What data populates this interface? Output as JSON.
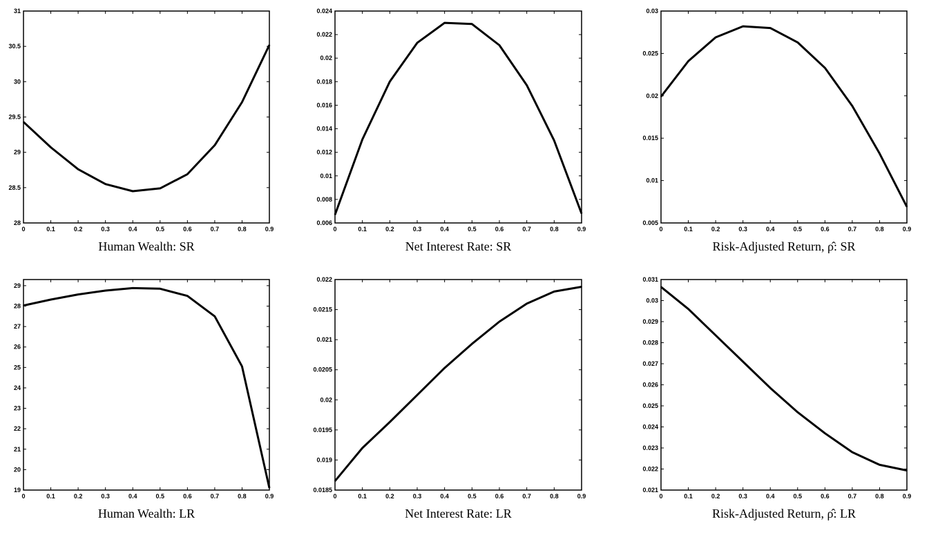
{
  "chart_data": [
    {
      "type": "line",
      "title": "",
      "caption": "Human Wealth: SR",
      "xlabel": "",
      "ylabel": "",
      "xlim": [
        0,
        0.9
      ],
      "ylim": [
        28,
        31
      ],
      "xticks": [
        "0",
        "0.1",
        "0.2",
        "0.3",
        "0.4",
        "0.5",
        "0.6",
        "0.7",
        "0.8",
        "0.9"
      ],
      "yticks": [
        "28",
        "28.5",
        "29",
        "29.5",
        "30",
        "30.5",
        "31"
      ],
      "grid": false,
      "x": [
        0,
        0.1,
        0.2,
        0.3,
        0.4,
        0.5,
        0.6,
        0.7,
        0.8,
        0.9
      ],
      "series": [
        {
          "values": [
            29.43,
            29.07,
            28.76,
            28.55,
            28.45,
            28.49,
            28.69,
            29.1,
            29.71,
            30.52
          ]
        }
      ]
    },
    {
      "type": "line",
      "title": "",
      "caption": "Net Interest Rate: SR",
      "xlabel": "",
      "ylabel": "",
      "xlim": [
        0,
        0.9
      ],
      "ylim": [
        0.006,
        0.024
      ],
      "xticks": [
        "0",
        "0.1",
        "0.2",
        "0.3",
        "0.4",
        "0.5",
        "0.6",
        "0.7",
        "0.8",
        "0.9"
      ],
      "yticks": [
        "0.006",
        "0.008",
        "0.01",
        "0.012",
        "0.014",
        "0.016",
        "0.018",
        "0.02",
        "0.022",
        "0.024"
      ],
      "grid": false,
      "x": [
        0,
        0.1,
        0.2,
        0.3,
        0.4,
        0.5,
        0.6,
        0.7,
        0.8,
        0.9
      ],
      "series": [
        {
          "values": [
            0.0067,
            0.0131,
            0.018,
            0.0213,
            0.023,
            0.0229,
            0.0211,
            0.0177,
            0.013,
            0.0068
          ]
        }
      ]
    },
    {
      "type": "line",
      "title": "",
      "caption": "Risk-Adjusted Return, ρ̂: SR",
      "xlabel": "",
      "ylabel": "",
      "xlim": [
        0,
        0.9
      ],
      "ylim": [
        0.005,
        0.03
      ],
      "xticks": [
        "0",
        "0.1",
        "0.2",
        "0.3",
        "0.4",
        "0.5",
        "0.6",
        "0.7",
        "0.8",
        "0.9"
      ],
      "yticks": [
        "0.005",
        "0.01",
        "0.015",
        "0.02",
        "0.025",
        "0.03"
      ],
      "grid": false,
      "x": [
        0,
        0.1,
        0.2,
        0.3,
        0.4,
        0.5,
        0.6,
        0.7,
        0.8,
        0.9
      ],
      "series": [
        {
          "values": [
            0.0199,
            0.0241,
            0.0269,
            0.0282,
            0.028,
            0.0263,
            0.0233,
            0.0188,
            0.0132,
            0.0069
          ]
        }
      ]
    },
    {
      "type": "line",
      "title": "",
      "caption": "Human Wealth: LR",
      "xlabel": "",
      "ylabel": "",
      "xlim": [
        0,
        0.9
      ],
      "ylim": [
        19,
        29.3
      ],
      "xticks": [
        "0",
        "0.1",
        "0.2",
        "0.3",
        "0.4",
        "0.5",
        "0.6",
        "0.7",
        "0.8",
        "0.9"
      ],
      "yticks": [
        "19",
        "20",
        "21",
        "22",
        "23",
        "24",
        "25",
        "26",
        "27",
        "28",
        "29"
      ],
      "grid": false,
      "x": [
        0,
        0.1,
        0.2,
        0.3,
        0.4,
        0.5,
        0.6,
        0.7,
        0.8,
        0.9
      ],
      "series": [
        {
          "values": [
            28.03,
            28.32,
            28.57,
            28.76,
            28.88,
            28.85,
            28.5,
            27.5,
            25.05,
            19.1
          ]
        }
      ]
    },
    {
      "type": "line",
      "title": "",
      "caption": "Net Interest Rate: LR",
      "xlabel": "",
      "ylabel": "",
      "xlim": [
        0,
        0.9
      ],
      "ylim": [
        0.0185,
        0.022
      ],
      "xticks": [
        "0",
        "0.1",
        "0.2",
        "0.3",
        "0.4",
        "0.5",
        "0.6",
        "0.7",
        "0.8",
        "0.9"
      ],
      "yticks": [
        "0.0185",
        "0.019",
        "0.0195",
        "0.02",
        "0.0205",
        "0.021",
        "0.0215",
        "0.022"
      ],
      "grid": false,
      "x": [
        0,
        0.1,
        0.2,
        0.3,
        0.4,
        0.5,
        0.6,
        0.7,
        0.8,
        0.9
      ],
      "series": [
        {
          "values": [
            0.01865,
            0.0192,
            0.01963,
            0.02008,
            0.02053,
            0.02093,
            0.0213,
            0.0216,
            0.0218,
            0.02188
          ]
        }
      ]
    },
    {
      "type": "line",
      "title": "",
      "caption": "Risk-Adjusted Return, ρ̂: LR",
      "xlabel": "",
      "ylabel": "",
      "xlim": [
        0,
        0.9
      ],
      "ylim": [
        0.021,
        0.031
      ],
      "xticks": [
        "0",
        "0.1",
        "0.2",
        "0.3",
        "0.4",
        "0.5",
        "0.6",
        "0.7",
        "0.8",
        "0.9"
      ],
      "yticks": [
        "0.021",
        "0.022",
        "0.023",
        "0.024",
        "0.025",
        "0.026",
        "0.027",
        "0.028",
        "0.029",
        "0.03",
        "0.031"
      ],
      "grid": false,
      "x": [
        0,
        0.1,
        0.2,
        0.3,
        0.4,
        0.5,
        0.6,
        0.7,
        0.8,
        0.9
      ],
      "series": [
        {
          "values": [
            0.03065,
            0.0296,
            0.02835,
            0.0271,
            0.02585,
            0.0247,
            0.0237,
            0.0228,
            0.0222,
            0.02193
          ]
        }
      ]
    }
  ]
}
